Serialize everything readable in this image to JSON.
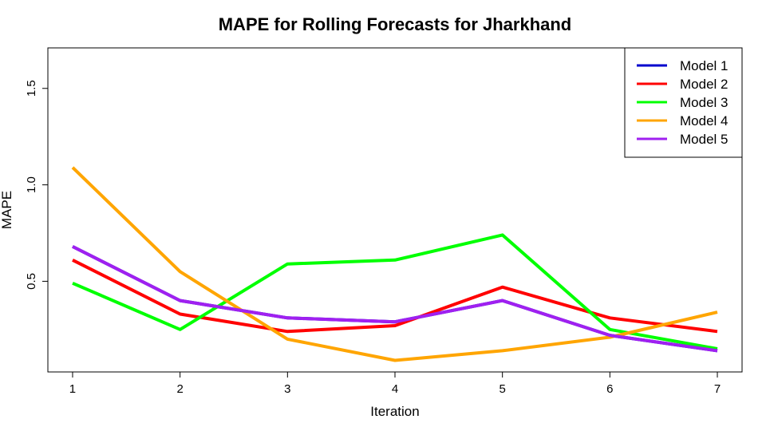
{
  "chart_data": {
    "type": "line",
    "title": "MAPE for Rolling Forecasts for Jharkhand",
    "xlabel": "Iteration",
    "ylabel": "MAPE",
    "x": [
      1,
      2,
      3,
      4,
      5,
      6,
      7
    ],
    "xticks": [
      "1",
      "2",
      "3",
      "4",
      "5",
      "6",
      "7"
    ],
    "yticks": [
      "0.5",
      "1.0",
      "1.5"
    ],
    "xlim": [
      0.77,
      7.23
    ],
    "ylim": [
      0.03,
      1.71
    ],
    "grid": false,
    "legend_position": "top-right",
    "series": [
      {
        "name": "Model 1",
        "color": "#0000cd",
        "values": [
          0.68,
          0.4,
          0.31,
          0.29,
          0.4,
          0.22,
          0.14
        ]
      },
      {
        "name": "Model 2",
        "color": "#ff0000",
        "values": [
          0.61,
          0.33,
          0.24,
          0.27,
          0.47,
          0.31,
          0.24
        ]
      },
      {
        "name": "Model 3",
        "color": "#00ff00",
        "values": [
          0.49,
          0.25,
          0.59,
          0.61,
          0.74,
          0.25,
          0.15
        ]
      },
      {
        "name": "Model 4",
        "color": "#ffa500",
        "values": [
          1.09,
          0.55,
          0.2,
          0.09,
          0.14,
          0.21,
          0.34
        ]
      },
      {
        "name": "Model 5",
        "color": "#a020f0",
        "values": [
          0.68,
          0.4,
          0.31,
          0.29,
          0.4,
          0.22,
          0.14
        ]
      }
    ]
  }
}
